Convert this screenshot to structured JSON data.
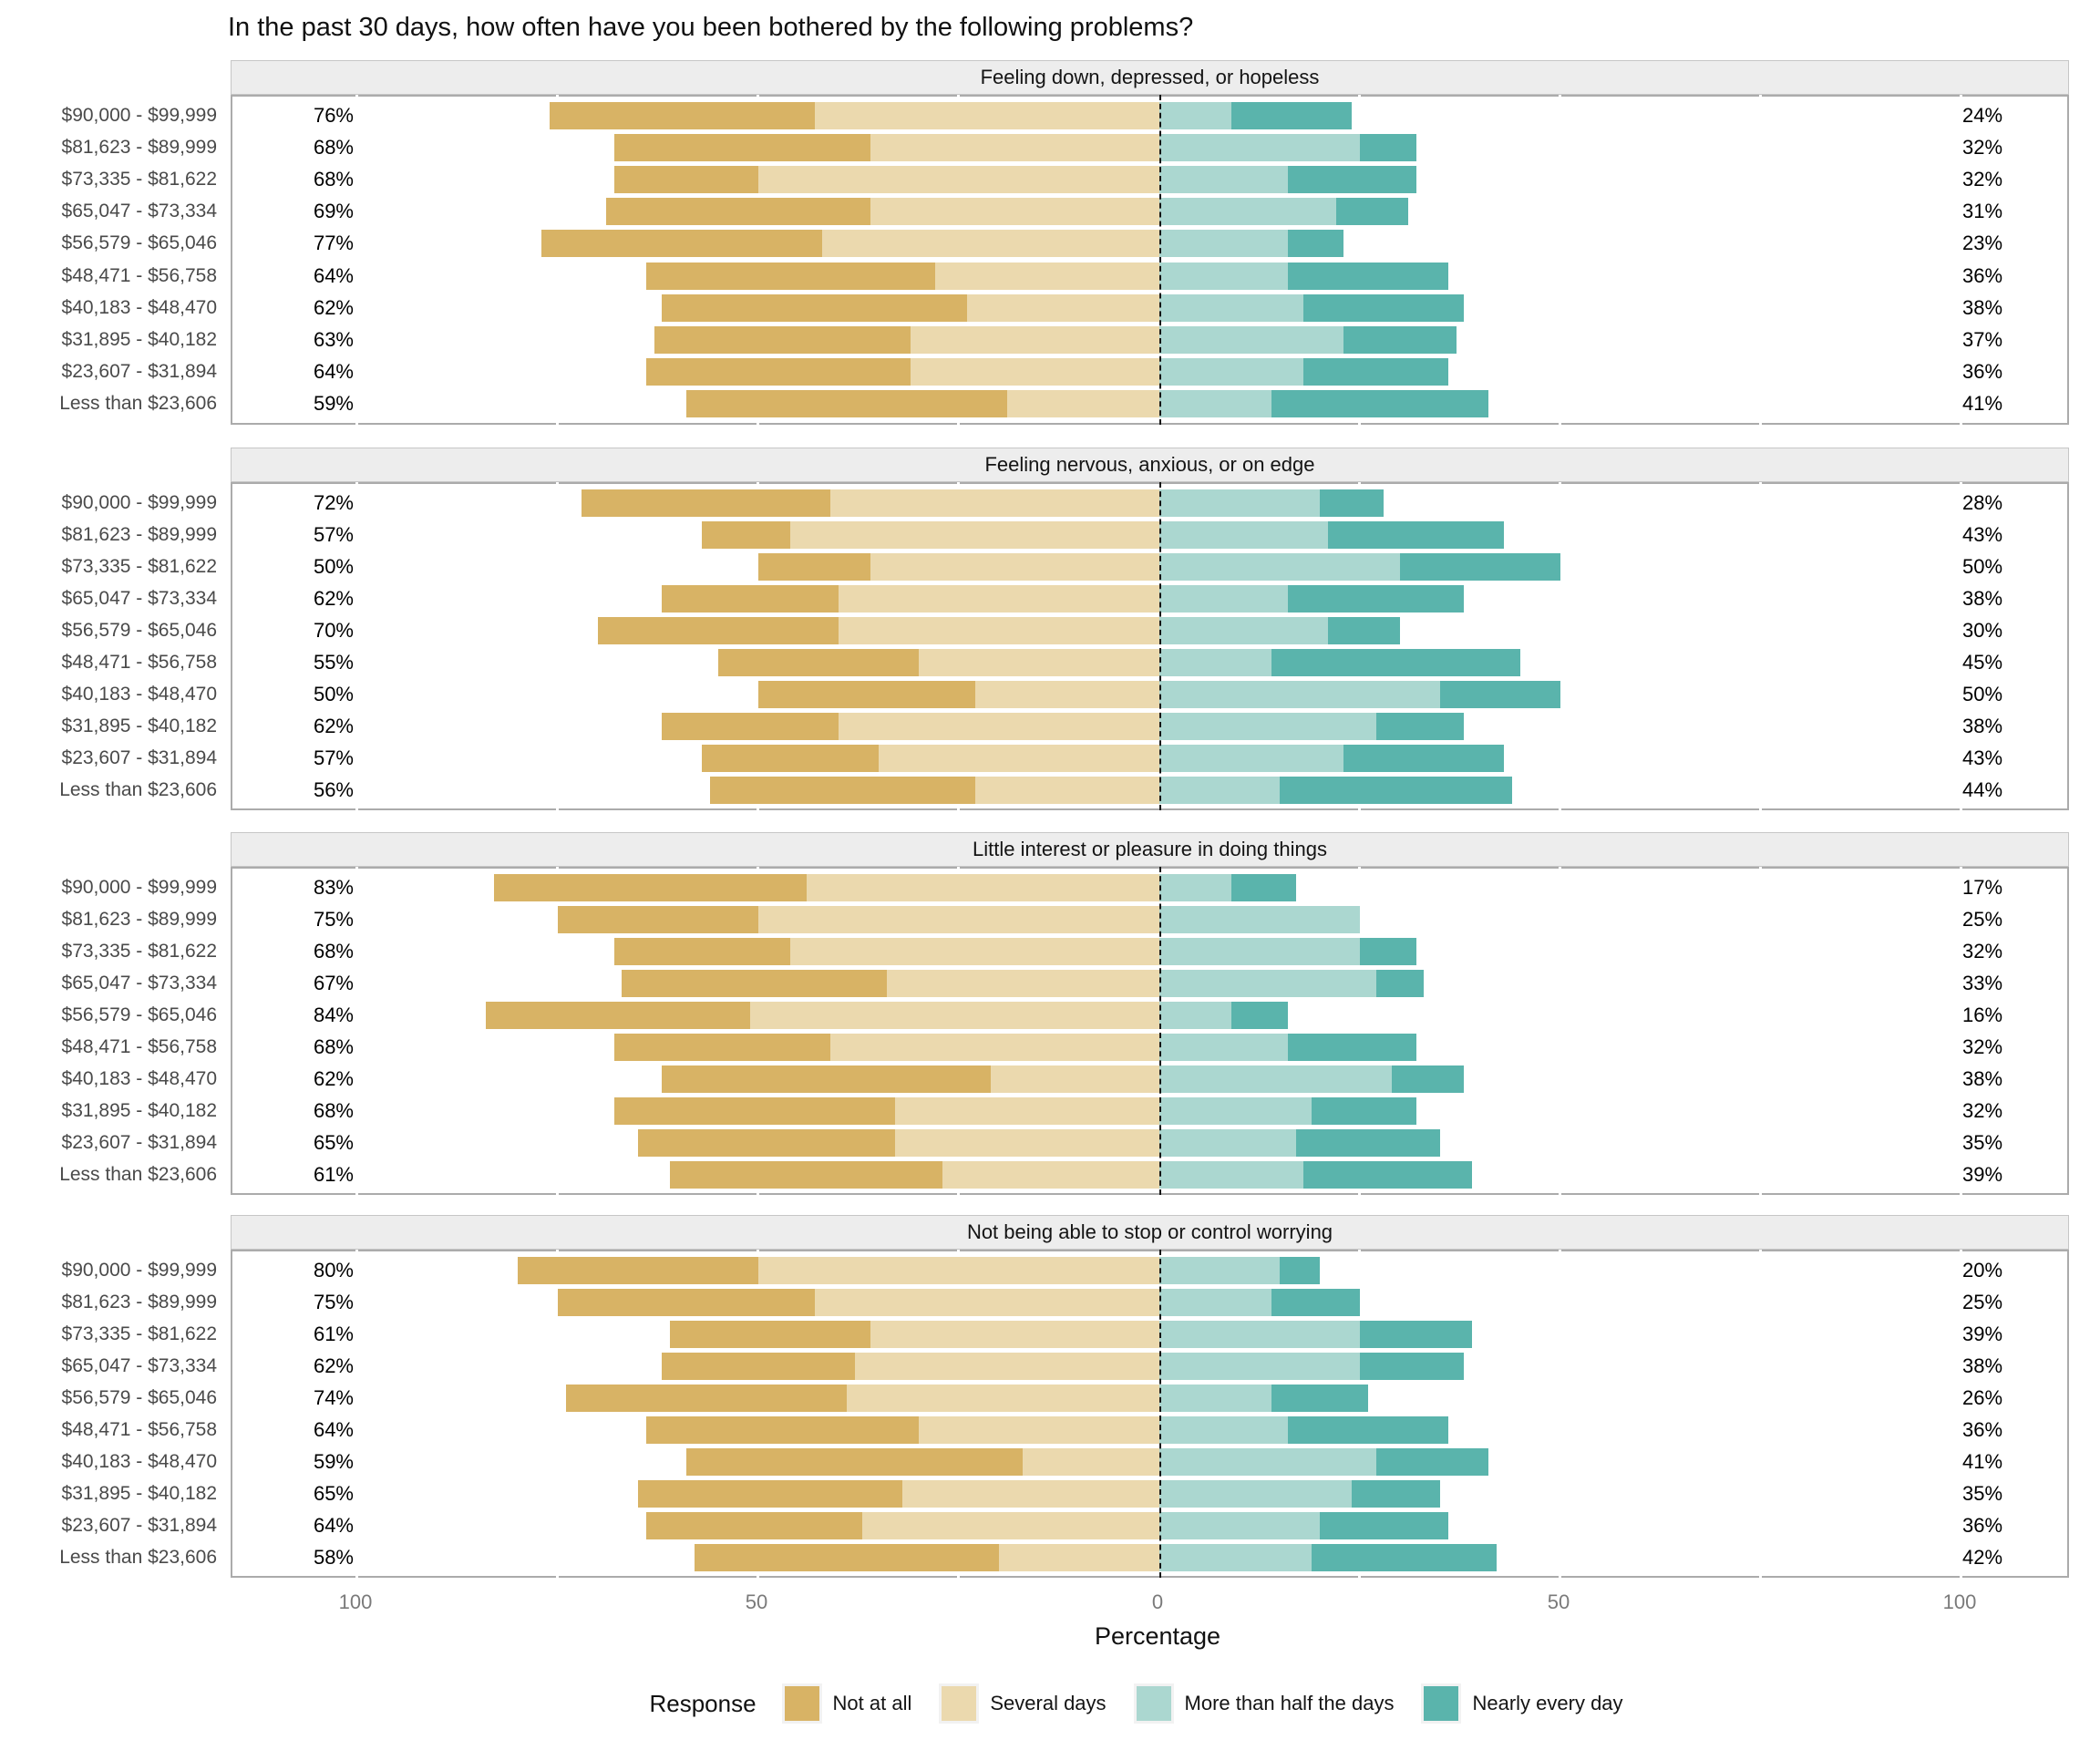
{
  "title": "In the past 30 days, how often have you been bothered by the following problems?",
  "axis": {
    "label": "Percentage",
    "ticks": [
      "100",
      "50",
      "0",
      "50",
      "100"
    ],
    "tick_values": [
      -100,
      -50,
      0,
      50,
      100
    ]
  },
  "legend": {
    "title": "Response",
    "items": [
      {
        "label": "Not at all",
        "color": "#D8B365"
      },
      {
        "label": "Several days",
        "color": "#EBD9AE"
      },
      {
        "label": "More than half the days",
        "color": "#ABD7D0"
      },
      {
        "label": "Nearly every day",
        "color": "#5AB4AC"
      }
    ]
  },
  "colors": {
    "not_at_all": "#D8B365",
    "several_days": "#EBD9AE",
    "more_than_half": "#ABD7D0",
    "nearly_every_day": "#5AB4AC",
    "strip_bg": "#EDEDED",
    "panel_border": "#ABABAB",
    "center_line": "#141414"
  },
  "chart_data": {
    "type": "bar",
    "subtype": "diverging_stacked_bar",
    "unit": "percent",
    "title": "In the past 30 days, how often have you been bothered by the following problems?",
    "xlabel": "Percentage",
    "xlim": [
      -115,
      115
    ],
    "grid": false,
    "legend_position": "bottom",
    "series_order": [
      "Not at all",
      "Several days",
      "More than half the days",
      "Nearly every day"
    ],
    "categories": [
      "$90,000 - $99,999",
      "$81,623 - $89,999",
      "$73,335 - $81,622",
      "$65,047 - $73,334",
      "$56,579 - $65,046",
      "$48,471 - $56,758",
      "$40,183 - $48,470",
      "$31,895 - $40,182",
      "$23,607 - $31,894",
      "Less than $23,606"
    ],
    "panels": [
      {
        "title": "Feeling down, depressed, or hopeless",
        "rows": [
          {
            "category": "$90,000 - $99,999",
            "not_at_all": 33,
            "several_days": 43,
            "more_than_half": 9,
            "nearly_every_day": 15,
            "left_label": "76%",
            "right_label": "24%"
          },
          {
            "category": "$81,623 - $89,999",
            "not_at_all": 32,
            "several_days": 36,
            "more_than_half": 25,
            "nearly_every_day": 7,
            "left_label": "68%",
            "right_label": "32%"
          },
          {
            "category": "$73,335 - $81,622",
            "not_at_all": 18,
            "several_days": 50,
            "more_than_half": 16,
            "nearly_every_day": 16,
            "left_label": "68%",
            "right_label": "32%"
          },
          {
            "category": "$65,047 - $73,334",
            "not_at_all": 33,
            "several_days": 36,
            "more_than_half": 22,
            "nearly_every_day": 9,
            "left_label": "69%",
            "right_label": "31%"
          },
          {
            "category": "$56,579 - $65,046",
            "not_at_all": 35,
            "several_days": 42,
            "more_than_half": 16,
            "nearly_every_day": 7,
            "left_label": "77%",
            "right_label": "23%"
          },
          {
            "category": "$48,471 - $56,758",
            "not_at_all": 36,
            "several_days": 28,
            "more_than_half": 16,
            "nearly_every_day": 20,
            "left_label": "64%",
            "right_label": "36%"
          },
          {
            "category": "$40,183 - $48,470",
            "not_at_all": 38,
            "several_days": 24,
            "more_than_half": 18,
            "nearly_every_day": 20,
            "left_label": "62%",
            "right_label": "38%"
          },
          {
            "category": "$31,895 - $40,182",
            "not_at_all": 32,
            "several_days": 31,
            "more_than_half": 23,
            "nearly_every_day": 14,
            "left_label": "63%",
            "right_label": "37%"
          },
          {
            "category": "$23,607 - $31,894",
            "not_at_all": 33,
            "several_days": 31,
            "more_than_half": 18,
            "nearly_every_day": 18,
            "left_label": "64%",
            "right_label": "36%"
          },
          {
            "category": "Less than $23,606",
            "not_at_all": 40,
            "several_days": 19,
            "more_than_half": 14,
            "nearly_every_day": 27,
            "left_label": "59%",
            "right_label": "41%"
          }
        ]
      },
      {
        "title": "Feeling nervous, anxious, or on edge",
        "rows": [
          {
            "category": "$90,000 - $99,999",
            "not_at_all": 31,
            "several_days": 41,
            "more_than_half": 20,
            "nearly_every_day": 8,
            "left_label": "72%",
            "right_label": "28%"
          },
          {
            "category": "$81,623 - $89,999",
            "not_at_all": 11,
            "several_days": 46,
            "more_than_half": 21,
            "nearly_every_day": 22,
            "left_label": "57%",
            "right_label": "43%"
          },
          {
            "category": "$73,335 - $81,622",
            "not_at_all": 14,
            "several_days": 36,
            "more_than_half": 30,
            "nearly_every_day": 20,
            "left_label": "50%",
            "right_label": "50%"
          },
          {
            "category": "$65,047 - $73,334",
            "not_at_all": 22,
            "several_days": 40,
            "more_than_half": 16,
            "nearly_every_day": 22,
            "left_label": "62%",
            "right_label": "38%"
          },
          {
            "category": "$56,579 - $65,046",
            "not_at_all": 30,
            "several_days": 40,
            "more_than_half": 21,
            "nearly_every_day": 9,
            "left_label": "70%",
            "right_label": "30%"
          },
          {
            "category": "$48,471 - $56,758",
            "not_at_all": 25,
            "several_days": 30,
            "more_than_half": 14,
            "nearly_every_day": 31,
            "left_label": "55%",
            "right_label": "45%"
          },
          {
            "category": "$40,183 - $48,470",
            "not_at_all": 27,
            "several_days": 23,
            "more_than_half": 35,
            "nearly_every_day": 15,
            "left_label": "50%",
            "right_label": "50%"
          },
          {
            "category": "$31,895 - $40,182",
            "not_at_all": 22,
            "several_days": 40,
            "more_than_half": 27,
            "nearly_every_day": 11,
            "left_label": "62%",
            "right_label": "38%"
          },
          {
            "category": "$23,607 - $31,894",
            "not_at_all": 22,
            "several_days": 35,
            "more_than_half": 23,
            "nearly_every_day": 20,
            "left_label": "57%",
            "right_label": "43%"
          },
          {
            "category": "Less than $23,606",
            "not_at_all": 33,
            "several_days": 23,
            "more_than_half": 15,
            "nearly_every_day": 29,
            "left_label": "56%",
            "right_label": "44%"
          }
        ]
      },
      {
        "title": "Little interest or pleasure in doing things",
        "rows": [
          {
            "category": "$90,000 - $99,999",
            "not_at_all": 39,
            "several_days": 44,
            "more_than_half": 9,
            "nearly_every_day": 8,
            "left_label": "83%",
            "right_label": "17%"
          },
          {
            "category": "$81,623 - $89,999",
            "not_at_all": 25,
            "several_days": 50,
            "more_than_half": 25,
            "nearly_every_day": 0,
            "left_label": "75%",
            "right_label": "25%"
          },
          {
            "category": "$73,335 - $81,622",
            "not_at_all": 22,
            "several_days": 46,
            "more_than_half": 25,
            "nearly_every_day": 7,
            "left_label": "68%",
            "right_label": "32%"
          },
          {
            "category": "$65,047 - $73,334",
            "not_at_all": 33,
            "several_days": 34,
            "more_than_half": 27,
            "nearly_every_day": 6,
            "left_label": "67%",
            "right_label": "33%"
          },
          {
            "category": "$56,579 - $65,046",
            "not_at_all": 33,
            "several_days": 51,
            "more_than_half": 9,
            "nearly_every_day": 7,
            "left_label": "84%",
            "right_label": "16%"
          },
          {
            "category": "$48,471 - $56,758",
            "not_at_all": 27,
            "several_days": 41,
            "more_than_half": 16,
            "nearly_every_day": 16,
            "left_label": "68%",
            "right_label": "32%"
          },
          {
            "category": "$40,183 - $48,470",
            "not_at_all": 41,
            "several_days": 21,
            "more_than_half": 29,
            "nearly_every_day": 9,
            "left_label": "62%",
            "right_label": "38%"
          },
          {
            "category": "$31,895 - $40,182",
            "not_at_all": 35,
            "several_days": 33,
            "more_than_half": 19,
            "nearly_every_day": 13,
            "left_label": "68%",
            "right_label": "32%"
          },
          {
            "category": "$23,607 - $31,894",
            "not_at_all": 32,
            "several_days": 33,
            "more_than_half": 17,
            "nearly_every_day": 18,
            "left_label": "65%",
            "right_label": "35%"
          },
          {
            "category": "Less than $23,606",
            "not_at_all": 34,
            "several_days": 27,
            "more_than_half": 18,
            "nearly_every_day": 21,
            "left_label": "61%",
            "right_label": "39%"
          }
        ]
      },
      {
        "title": "Not being able to stop or control worrying",
        "rows": [
          {
            "category": "$90,000 - $99,999",
            "not_at_all": 30,
            "several_days": 50,
            "more_than_half": 15,
            "nearly_every_day": 5,
            "left_label": "80%",
            "right_label": "20%"
          },
          {
            "category": "$81,623 - $89,999",
            "not_at_all": 32,
            "several_days": 43,
            "more_than_half": 14,
            "nearly_every_day": 11,
            "left_label": "75%",
            "right_label": "25%"
          },
          {
            "category": "$73,335 - $81,622",
            "not_at_all": 25,
            "several_days": 36,
            "more_than_half": 25,
            "nearly_every_day": 14,
            "left_label": "61%",
            "right_label": "39%"
          },
          {
            "category": "$65,047 - $73,334",
            "not_at_all": 24,
            "several_days": 38,
            "more_than_half": 25,
            "nearly_every_day": 13,
            "left_label": "62%",
            "right_label": "38%"
          },
          {
            "category": "$56,579 - $65,046",
            "not_at_all": 35,
            "several_days": 39,
            "more_than_half": 14,
            "nearly_every_day": 12,
            "left_label": "74%",
            "right_label": "26%"
          },
          {
            "category": "$48,471 - $56,758",
            "not_at_all": 34,
            "several_days": 30,
            "more_than_half": 16,
            "nearly_every_day": 20,
            "left_label": "64%",
            "right_label": "36%"
          },
          {
            "category": "$40,183 - $48,470",
            "not_at_all": 42,
            "several_days": 17,
            "more_than_half": 27,
            "nearly_every_day": 14,
            "left_label": "59%",
            "right_label": "41%"
          },
          {
            "category": "$31,895 - $40,182",
            "not_at_all": 33,
            "several_days": 32,
            "more_than_half": 24,
            "nearly_every_day": 11,
            "left_label": "65%",
            "right_label": "35%"
          },
          {
            "category": "$23,607 - $31,894",
            "not_at_all": 27,
            "several_days": 37,
            "more_than_half": 20,
            "nearly_every_day": 16,
            "left_label": "64%",
            "right_label": "36%"
          },
          {
            "category": "Less than $23,606",
            "not_at_all": 38,
            "several_days": 20,
            "more_than_half": 19,
            "nearly_every_day": 23,
            "left_label": "58%",
            "right_label": "42%"
          }
        ]
      }
    ]
  }
}
